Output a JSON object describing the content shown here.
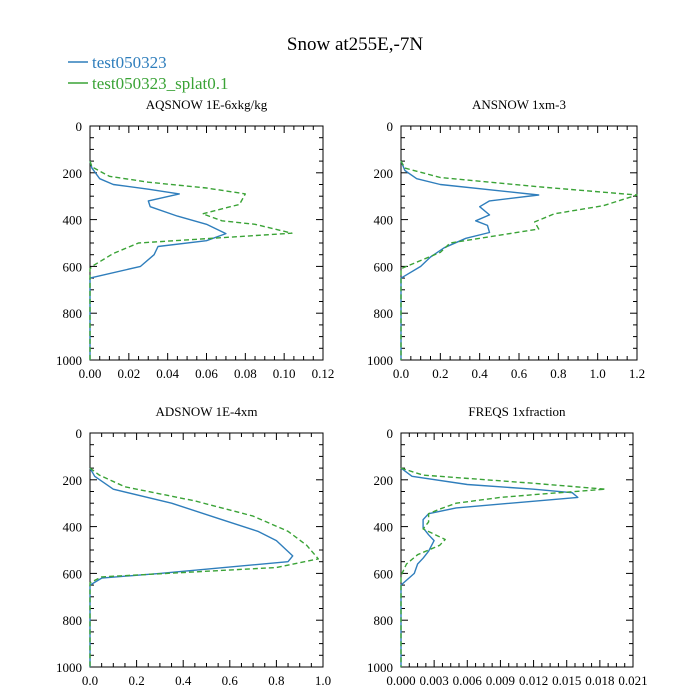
{
  "figure_title": "Snow at255E,-7N",
  "legend": [
    {
      "label": "test050323",
      "color": "#2f7ebc",
      "dash": "solid"
    },
    {
      "label": "test050323_splat0.1",
      "color": "#3aa336",
      "dash": "dashed"
    }
  ],
  "chart_data": [
    {
      "type": "line",
      "title": "AQSNOW  1E-6xkg/kg",
      "xlim": [
        0,
        0.12
      ],
      "ylim": [
        0,
        1000
      ],
      "y_inverted": true,
      "xtick_labels": [
        "0.00",
        "0.02",
        "0.04",
        "0.06",
        "0.08",
        "0.10",
        "0.12"
      ],
      "ytick_labels": [
        "0",
        "200",
        "400",
        "600",
        "800",
        "1000"
      ],
      "series": [
        {
          "name": "test050323",
          "points": [
            [
              0,
              150
            ],
            [
              0.001,
              180
            ],
            [
              0.005,
              225
            ],
            [
              0.012,
              250
            ],
            [
              0.03,
              270
            ],
            [
              0.046,
              290
            ],
            [
              0.03,
              320
            ],
            [
              0.031,
              345
            ],
            [
              0.045,
              385
            ],
            [
              0.06,
              420
            ],
            [
              0.07,
              460
            ],
            [
              0.06,
              490
            ],
            [
              0.035,
              515
            ],
            [
              0.033,
              550
            ],
            [
              0.026,
              600
            ],
            [
              0,
              650
            ],
            [
              0,
              1000
            ]
          ]
        },
        {
          "name": "test050323_splat0.1",
          "points": [
            [
              0,
              150
            ],
            [
              0.001,
              175
            ],
            [
              0.01,
              215
            ],
            [
              0.03,
              240
            ],
            [
              0.06,
              265
            ],
            [
              0.08,
              290
            ],
            [
              0.077,
              335
            ],
            [
              0.058,
              375
            ],
            [
              0.068,
              405
            ],
            [
              0.085,
              420
            ],
            [
              0.104,
              458
            ],
            [
              0.025,
              500
            ],
            [
              0.012,
              545
            ],
            [
              0.002,
              595
            ],
            [
              0,
              610
            ],
            [
              0,
              1000
            ]
          ]
        }
      ]
    },
    {
      "type": "line",
      "title": "ANSNOW  1xm-3",
      "xlim": [
        0,
        1.2
      ],
      "ylim": [
        0,
        1000
      ],
      "y_inverted": true,
      "xtick_labels": [
        "0.0",
        "0.2",
        "0.4",
        "0.6",
        "0.8",
        "1.0",
        "1.2"
      ],
      "ytick_labels": [
        "0",
        "200",
        "400",
        "600",
        "800",
        "1000"
      ],
      "series": [
        {
          "name": "test050323",
          "points": [
            [
              0,
              150
            ],
            [
              0.02,
              190
            ],
            [
              0.08,
              225
            ],
            [
              0.2,
              250
            ],
            [
              0.7,
              295
            ],
            [
              0.45,
              320
            ],
            [
              0.4,
              345
            ],
            [
              0.45,
              380
            ],
            [
              0.38,
              405
            ],
            [
              0.44,
              425
            ],
            [
              0.45,
              455
            ],
            [
              0.33,
              480
            ],
            [
              0.22,
              520
            ],
            [
              0.15,
              560
            ],
            [
              0.1,
              600
            ],
            [
              0.02,
              640
            ],
            [
              0,
              650
            ],
            [
              0,
              1000
            ]
          ]
        },
        {
          "name": "test050323_splat0.1",
          "points": [
            [
              0,
              150
            ],
            [
              0.02,
              180
            ],
            [
              0.2,
              220
            ],
            [
              0.7,
              260
            ],
            [
              1.2,
              295
            ],
            [
              1.03,
              340
            ],
            [
              0.78,
              375
            ],
            [
              0.68,
              410
            ],
            [
              0.7,
              440
            ],
            [
              0.25,
              500
            ],
            [
              0.2,
              540
            ],
            [
              0.1,
              575
            ],
            [
              0,
              610
            ],
            [
              0,
              1000
            ]
          ]
        }
      ]
    },
    {
      "type": "line",
      "title": "ADSNOW  1E-4xm",
      "xlim": [
        0,
        1.0
      ],
      "ylim": [
        0,
        1000
      ],
      "y_inverted": true,
      "xtick_labels": [
        "0.0",
        "0.2",
        "0.4",
        "0.6",
        "0.8",
        "1.0"
      ],
      "ytick_labels": [
        "0",
        "200",
        "400",
        "600",
        "800",
        "1000"
      ],
      "series": [
        {
          "name": "test050323",
          "points": [
            [
              0,
              150
            ],
            [
              0.02,
              185
            ],
            [
              0.1,
              240
            ],
            [
              0.35,
              300
            ],
            [
              0.55,
              365
            ],
            [
              0.72,
              420
            ],
            [
              0.8,
              460
            ],
            [
              0.87,
              525
            ],
            [
              0.85,
              550
            ],
            [
              0.3,
              600
            ],
            [
              0.05,
              620
            ],
            [
              0,
              650
            ],
            [
              0,
              1000
            ]
          ]
        },
        {
          "name": "test050323_splat0.1",
          "points": [
            [
              0,
              150
            ],
            [
              0.04,
              180
            ],
            [
              0.15,
              230
            ],
            [
              0.45,
              290
            ],
            [
              0.7,
              355
            ],
            [
              0.85,
              420
            ],
            [
              0.93,
              480
            ],
            [
              0.98,
              538
            ],
            [
              0.8,
              575
            ],
            [
              0.05,
              615
            ],
            [
              0,
              640
            ],
            [
              0,
              1000
            ]
          ]
        }
      ]
    },
    {
      "type": "line",
      "title": "FREQS  1xfraction",
      "xlim": [
        0,
        0.021
      ],
      "ylim": [
        0,
        1000
      ],
      "y_inverted": true,
      "xtick_labels": [
        "0.000",
        "0.003",
        "0.006",
        "0.009",
        "0.012",
        "0.015",
        "0.018",
        "0.021"
      ],
      "ytick_labels": [
        "0",
        "200",
        "400",
        "600",
        "800",
        "1000"
      ],
      "series": [
        {
          "name": "test050323",
          "points": [
            [
              0,
              150
            ],
            [
              0.001,
              185
            ],
            [
              0.006,
              220
            ],
            [
              0.012,
              240
            ],
            [
              0.0155,
              255
            ],
            [
              0.016,
              275
            ],
            [
              0.005,
              320
            ],
            [
              0.0025,
              345
            ],
            [
              0.002,
              370
            ],
            [
              0.002,
              405
            ],
            [
              0.0025,
              435
            ],
            [
              0.003,
              460
            ],
            [
              0.0025,
              505
            ],
            [
              0.002,
              535
            ],
            [
              0.0015,
              560
            ],
            [
              0.0012,
              600
            ],
            [
              0,
              650
            ],
            [
              0,
              1000
            ]
          ]
        },
        {
          "name": "test050323_splat0.1",
          "points": [
            [
              0,
              150
            ],
            [
              0.002,
              180
            ],
            [
              0.012,
              215
            ],
            [
              0.0185,
              240
            ],
            [
              0.013,
              260
            ],
            [
              0.009,
              275
            ],
            [
              0.005,
              300
            ],
            [
              0.0035,
              325
            ],
            [
              0.0025,
              345
            ],
            [
              0.0025,
              380
            ],
            [
              0.002,
              410
            ],
            [
              0.004,
              455
            ],
            [
              0.0035,
              480
            ],
            [
              0.0015,
              520
            ],
            [
              0.0005,
              560
            ],
            [
              0,
              610
            ],
            [
              0,
              1000
            ]
          ]
        }
      ]
    }
  ]
}
